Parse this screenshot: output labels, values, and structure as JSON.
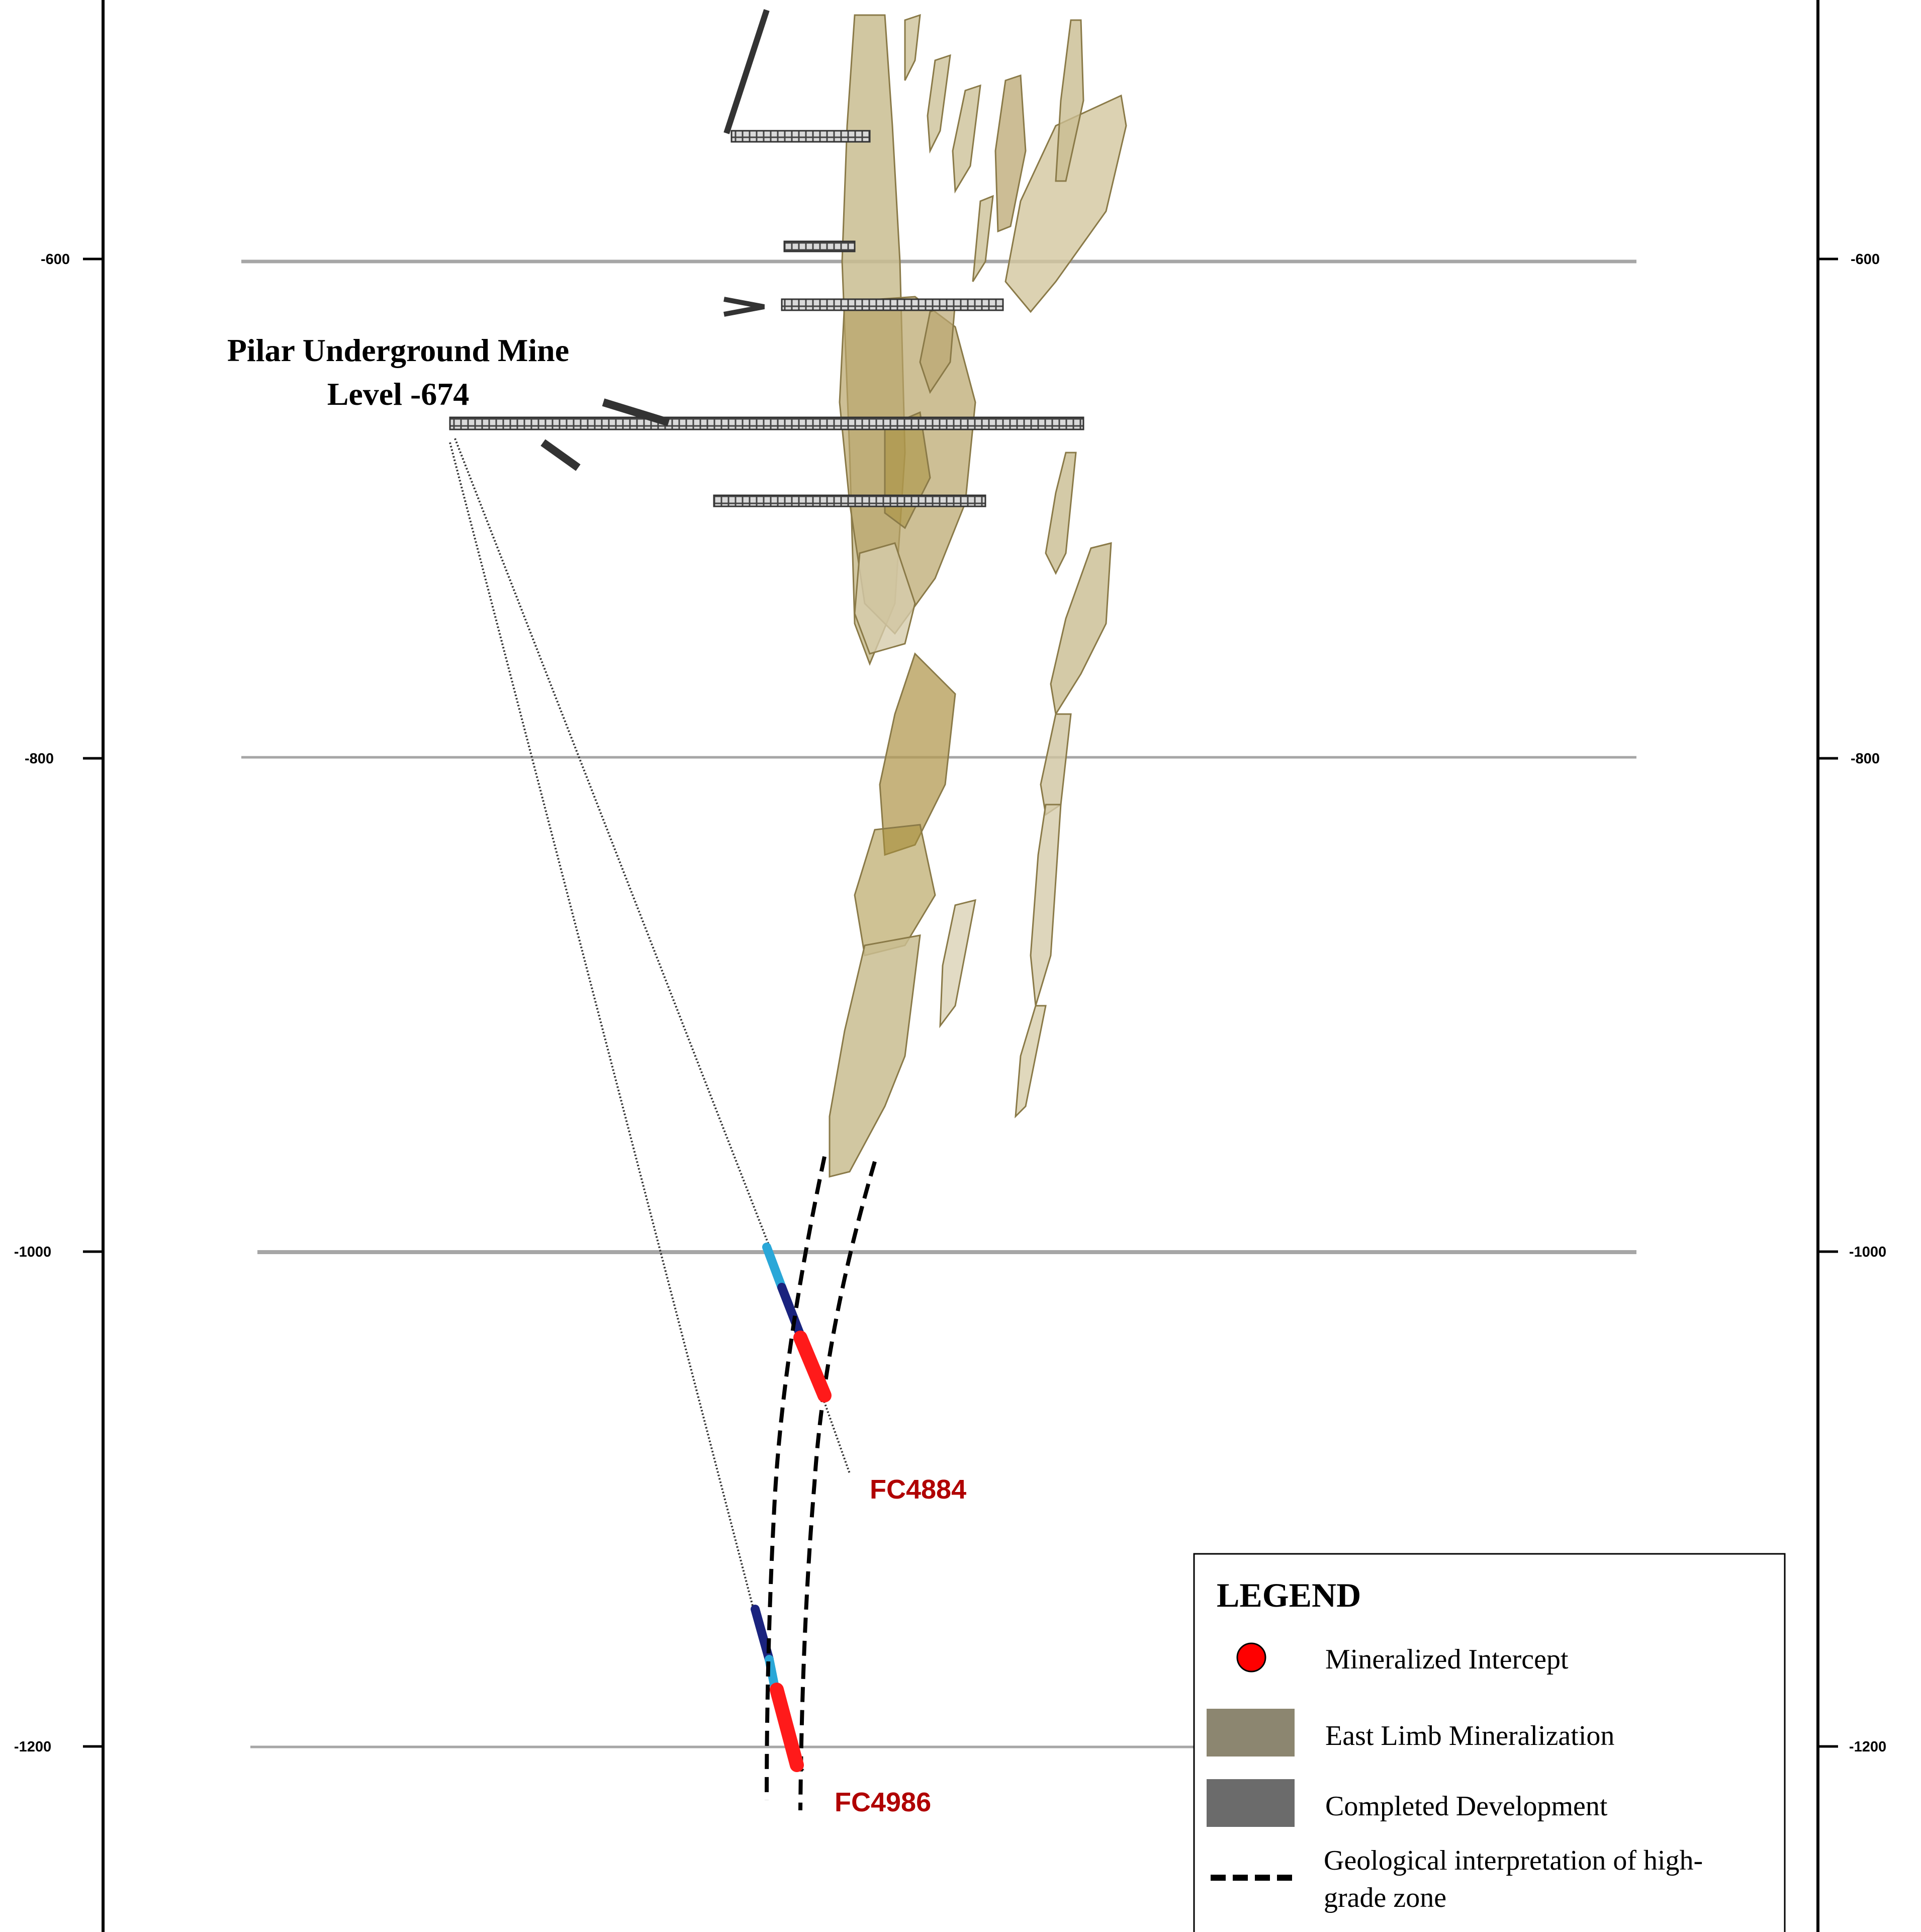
{
  "elevation_axis": {
    "ticks": [
      "-600",
      "-800",
      "-1000",
      "-1200"
    ]
  },
  "mine": {
    "name": "Pilar Underground Mine",
    "level": "Level -674"
  },
  "drill_holes": [
    {
      "id": "FC4884"
    },
    {
      "id": "FC4986"
    }
  ],
  "legend": {
    "title": "LEGEND",
    "items": [
      {
        "label": "Mineralized Intercept",
        "symbol": "red-circle-icon",
        "color": "#ff0000"
      },
      {
        "label": "East Limb Mineralization",
        "symbol": "tan-swatch",
        "color": "#8c8670"
      },
      {
        "label": "Completed Development",
        "symbol": "gray-swatch",
        "color": "#6b6b6b"
      },
      {
        "label_line1": "Geological interpretation of high-",
        "label_line2": "grade zone",
        "symbol": "dashed-line-icon",
        "color": "#000000"
      }
    ]
  },
  "colors": {
    "mineralization_fill": "#c9bd91",
    "mineralization_dark": "#a88f3c",
    "intercept_red": "#ff1a1a",
    "hole_label_red": "#b00000",
    "dark_blue_core": "#1a237e",
    "light_blue_core": "#2aa7d8"
  }
}
